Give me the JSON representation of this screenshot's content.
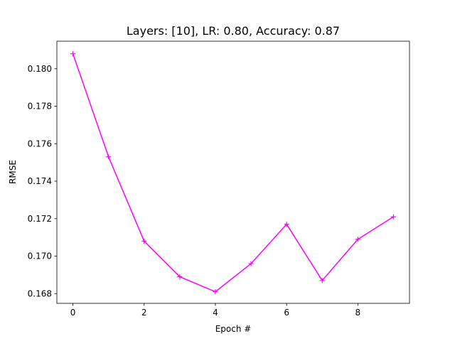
{
  "chart_data": {
    "type": "line",
    "title": "Layers: [10], LR: 0.80, Accuracy: 0.87",
    "xlabel": "Epoch #",
    "ylabel": "RMSE",
    "x": [
      0,
      1,
      2,
      3,
      4,
      5,
      6,
      7,
      8,
      9
    ],
    "series": [
      {
        "values": [
          0.1808,
          0.1753,
          0.1708,
          0.1689,
          0.1681,
          0.1696,
          0.1717,
          0.1687,
          0.1709,
          0.1721
        ],
        "color": "#ff00ff",
        "marker": "plus"
      }
    ],
    "xlim": [
      -0.45,
      9.45
    ],
    "ylim": [
      0.16748,
      0.18147
    ],
    "xticks": [
      0,
      2,
      4,
      6,
      8
    ],
    "xtick_labels": [
      "0",
      "2",
      "4",
      "6",
      "8"
    ],
    "yticks": [
      0.168,
      0.17,
      0.172,
      0.174,
      0.176,
      0.178,
      0.18
    ],
    "ytick_labels": [
      "0.168",
      "0.170",
      "0.172",
      "0.174",
      "0.176",
      "0.178",
      "0.180"
    ],
    "grid": false,
    "legend": false
  }
}
